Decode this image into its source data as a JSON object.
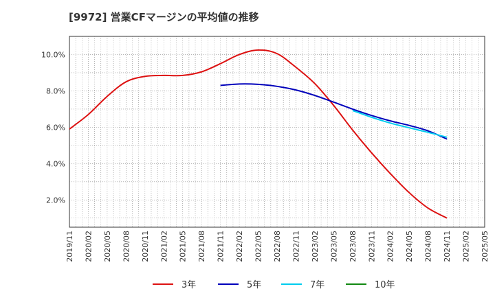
{
  "chart_data": {
    "type": "line",
    "title": "[9972]  営業CFマージンの平均値の推移",
    "xlabel": "",
    "ylabel": "",
    "x_ticks": [
      "2019/11",
      "2020/02",
      "2020/05",
      "2020/08",
      "2020/11",
      "2021/02",
      "2021/05",
      "2021/08",
      "2021/11",
      "2022/02",
      "2022/05",
      "2022/08",
      "2022/11",
      "2023/02",
      "2023/05",
      "2023/08",
      "2023/11",
      "2024/02",
      "2024/05",
      "2024/08",
      "2024/11",
      "2025/02",
      "2025/05"
    ],
    "y_ticks": [
      "2.0%",
      "4.0%",
      "6.0%",
      "8.0%",
      "10.0%"
    ],
    "ylim": [
      0.5,
      11.0
    ],
    "grid": true,
    "legend_position": "bottom",
    "series": [
      {
        "name": "3年",
        "color": "#dd1111",
        "x": [
          "2019/11",
          "2020/02",
          "2020/05",
          "2020/08",
          "2020/11",
          "2021/02",
          "2021/05",
          "2021/08",
          "2021/11",
          "2022/02",
          "2022/05",
          "2022/08",
          "2022/11",
          "2023/02",
          "2023/05",
          "2023/08",
          "2023/11",
          "2024/02",
          "2024/05",
          "2024/08",
          "2024/11"
        ],
        "values": [
          5.9,
          6.7,
          7.7,
          8.5,
          8.8,
          8.85,
          8.85,
          9.05,
          9.5,
          10.0,
          10.25,
          10.05,
          9.3,
          8.4,
          7.2,
          5.85,
          4.6,
          3.45,
          2.4,
          1.55,
          1.0
        ]
      },
      {
        "name": "5年",
        "color": "#0000bb",
        "x": [
          "2021/11",
          "2022/02",
          "2022/05",
          "2022/08",
          "2022/11",
          "2023/02",
          "2023/05",
          "2023/08",
          "2023/11",
          "2024/02",
          "2024/05",
          "2024/08",
          "2024/11"
        ],
        "values": [
          8.3,
          8.38,
          8.36,
          8.25,
          8.05,
          7.75,
          7.38,
          7.0,
          6.65,
          6.35,
          6.1,
          5.8,
          5.35
        ]
      },
      {
        "name": "7年",
        "color": "#00ccee",
        "x": [
          "2023/08",
          "2023/11",
          "2024/02",
          "2024/05",
          "2024/08",
          "2024/11"
        ],
        "values": [
          6.92,
          6.55,
          6.23,
          5.97,
          5.72,
          5.45
        ]
      },
      {
        "name": "10年",
        "color": "#118811",
        "x": [],
        "values": []
      }
    ]
  }
}
